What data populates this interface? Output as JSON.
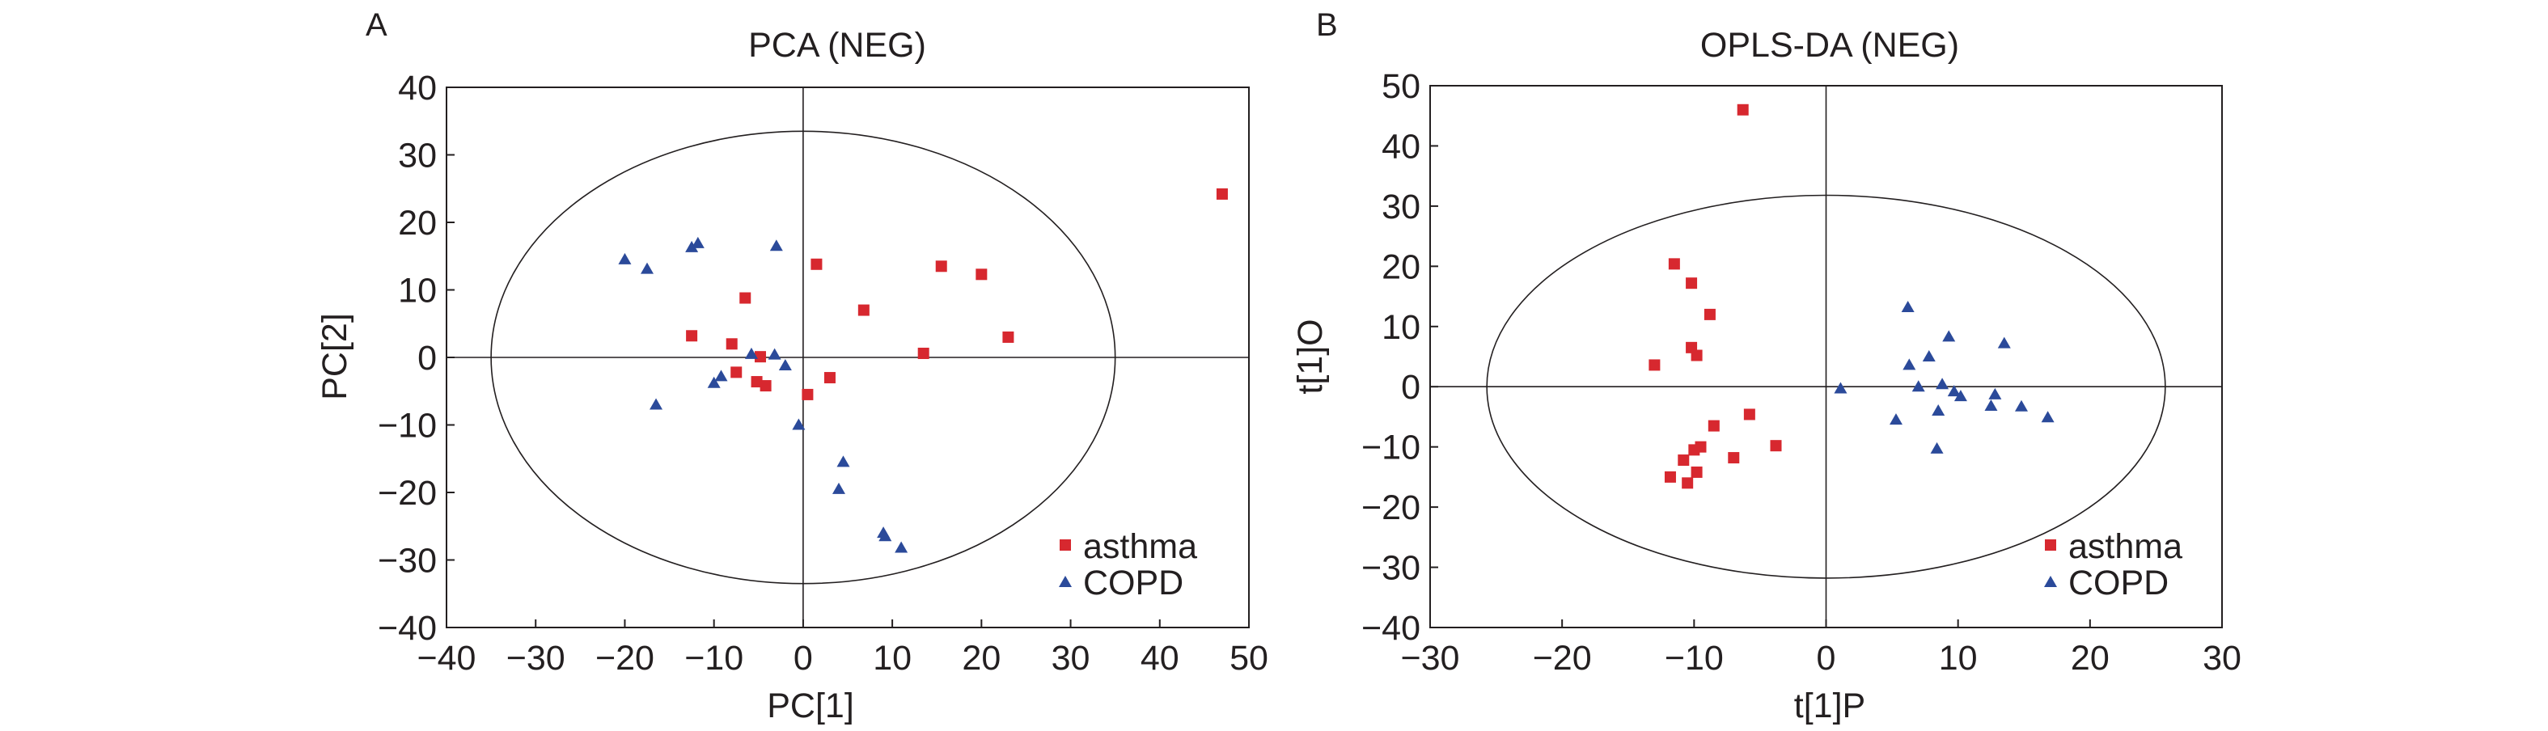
{
  "colors": {
    "asthma": "#d7282f",
    "copd": "#2b4a9a",
    "axis": "#231f20"
  },
  "chart_data": [
    {
      "type": "scatter",
      "panel_label": "A",
      "title": "PCA (NEG)",
      "xlabel": "PC[1]",
      "ylabel": "PC[2]",
      "xlim": [
        -40,
        50
      ],
      "ylim": [
        -40,
        40
      ],
      "xticks": [
        "−40",
        "−30",
        "−20",
        "−10",
        "0",
        "10",
        "20",
        "30",
        "40",
        "50"
      ],
      "yticks": [
        "40",
        "30",
        "20",
        "10",
        "0",
        "−10",
        "−20",
        "−30",
        "−40"
      ],
      "xtick_values": [
        -40,
        -30,
        -20,
        -10,
        0,
        10,
        20,
        30,
        40,
        50
      ],
      "ytick_values": [
        40,
        30,
        20,
        10,
        0,
        -10,
        -20,
        -30,
        -40
      ],
      "ellipse": {
        "cx": 0,
        "cy": 0,
        "rx": 35,
        "ry": 33.5
      },
      "legend_position": "bottom-right",
      "series": [
        {
          "name": "asthma",
          "marker": "square",
          "color": "#d7282f",
          "points": [
            [
              47,
              24.2
            ],
            [
              1.5,
              13.8
            ],
            [
              15.5,
              13.5
            ],
            [
              20,
              12.3
            ],
            [
              -6.5,
              8.8
            ],
            [
              6.8,
              7
            ],
            [
              23,
              3
            ],
            [
              -12.5,
              3.2
            ],
            [
              -8,
              2
            ],
            [
              13.5,
              0.6
            ],
            [
              -4.8,
              0.1
            ],
            [
              -7.5,
              -2.2
            ],
            [
              -5.2,
              -3.6
            ],
            [
              -4.2,
              -4.2
            ],
            [
              3,
              -3
            ],
            [
              0.5,
              -5.5
            ]
          ]
        },
        {
          "name": "COPD",
          "marker": "triangle",
          "color": "#2b4a9a",
          "points": [
            [
              -20,
              14.5
            ],
            [
              -17.5,
              13.1
            ],
            [
              -12.5,
              16.3
            ],
            [
              -11.8,
              16.9
            ],
            [
              -3,
              16.5
            ],
            [
              -5.8,
              0.5
            ],
            [
              -3.2,
              0.4
            ],
            [
              -2,
              -1.2
            ],
            [
              -10,
              -3.8
            ],
            [
              -9.2,
              -2.8
            ],
            [
              -16.5,
              -7
            ],
            [
              -0.5,
              -10
            ],
            [
              4.5,
              -15.5
            ],
            [
              4,
              -19.5
            ],
            [
              9,
              -26
            ],
            [
              9.2,
              -26.5
            ],
            [
              11,
              -28.2
            ]
          ]
        }
      ]
    },
    {
      "type": "scatter",
      "panel_label": "B",
      "title": "OPLS-DA (NEG)",
      "xlabel": "t[1]P",
      "ylabel": "t[1]O",
      "xlim": [
        -30,
        30
      ],
      "ylim": [
        -40,
        50
      ],
      "xticks": [
        "−30",
        "−20",
        "−10",
        "0",
        "10",
        "20",
        "30"
      ],
      "yticks": [
        "50",
        "40",
        "30",
        "20",
        "10",
        "0",
        "−10",
        "−20",
        "−30",
        "−40"
      ],
      "xtick_values": [
        -30,
        -20,
        -10,
        0,
        10,
        20,
        30
      ],
      "ytick_values": [
        50,
        40,
        30,
        20,
        10,
        0,
        -10,
        -20,
        -30,
        -40
      ],
      "ellipse": {
        "cx": 0,
        "cy": 0,
        "rx": 25.7,
        "ry": 31.8
      },
      "legend_position": "bottom-right",
      "series": [
        {
          "name": "asthma",
          "marker": "square",
          "color": "#d7282f",
          "points": [
            [
              -6.3,
              46
            ],
            [
              -11.5,
              20.4
            ],
            [
              -10.2,
              17.2
            ],
            [
              -8.8,
              12
            ],
            [
              -10.2,
              6.5
            ],
            [
              -9.8,
              5.2
            ],
            [
              -13,
              3.6
            ],
            [
              -5.8,
              -4.6
            ],
            [
              -8.5,
              -6.5
            ],
            [
              -3.8,
              -9.8
            ],
            [
              -9.5,
              -10
            ],
            [
              -10,
              -10.5
            ],
            [
              -7,
              -11.8
            ],
            [
              -10.8,
              -12.2
            ],
            [
              -9.8,
              -14.2
            ],
            [
              -11.8,
              -15
            ],
            [
              -10.5,
              -16
            ]
          ]
        },
        {
          "name": "COPD",
          "marker": "triangle",
          "color": "#2b4a9a",
          "points": [
            [
              6.2,
              13.2
            ],
            [
              9.3,
              8.3
            ],
            [
              13.5,
              7.2
            ],
            [
              7.8,
              5
            ],
            [
              6.3,
              3.6
            ],
            [
              8.8,
              0.4
            ],
            [
              7,
              0
            ],
            [
              9.7,
              -0.8
            ],
            [
              10.2,
              -1.6
            ],
            [
              12.8,
              -1.3
            ],
            [
              1.1,
              -0.3
            ],
            [
              12.5,
              -3.2
            ],
            [
              14.8,
              -3.3
            ],
            [
              8.5,
              -4
            ],
            [
              16.8,
              -5.1
            ],
            [
              5.3,
              -5.5
            ],
            [
              8.4,
              -10.3
            ]
          ]
        }
      ]
    }
  ]
}
